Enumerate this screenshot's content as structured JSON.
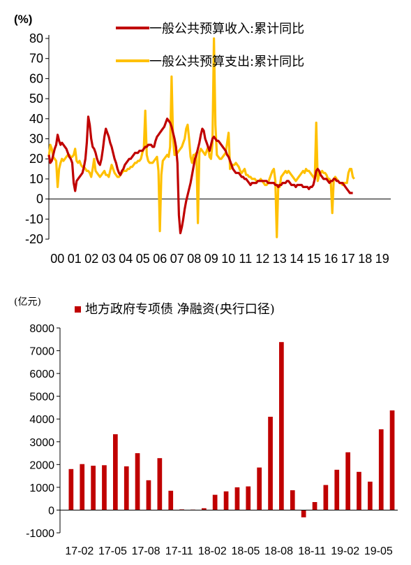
{
  "chart_data": [
    {
      "type": "line",
      "unit_label": "(%)",
      "yticks": [
        "80",
        "70",
        "60",
        "50",
        "40",
        "30",
        "20",
        "10",
        "0",
        "-10",
        "-20"
      ],
      "ylim": [
        -20,
        80
      ],
      "x_labels": [
        "00",
        "01",
        "02",
        "03",
        "04",
        "05",
        "06",
        "07",
        "08",
        "09",
        "10",
        "11",
        "12",
        "13",
        "14",
        "15",
        "16",
        "17",
        "18",
        "19"
      ],
      "legend_position": "top-right",
      "series": [
        {
          "name": "一般公共预算收入:累计同比",
          "color": "#c00000",
          "x_start": 2000.0,
          "x_step": 0.0833333,
          "values": [
            22,
            18,
            19,
            22,
            25,
            27,
            32,
            29,
            27,
            28,
            27,
            26,
            25,
            23,
            21,
            20,
            18,
            8,
            4,
            9,
            10,
            11,
            12,
            13,
            16,
            20,
            28,
            41,
            37,
            30,
            26,
            25,
            23,
            20,
            18,
            17,
            20,
            25,
            31,
            35,
            33,
            31,
            28,
            26,
            23,
            20,
            18,
            15,
            13,
            12,
            14,
            15,
            17,
            18,
            19,
            20,
            20,
            21,
            22,
            23,
            23,
            23,
            24,
            24,
            24,
            25,
            26,
            26,
            27,
            27,
            27,
            26,
            26,
            29,
            31,
            32,
            33,
            34,
            35,
            36,
            38,
            40,
            39,
            38,
            36,
            33,
            30,
            26,
            18,
            -8,
            -17,
            -14,
            -10,
            -5,
            -1,
            2,
            5,
            8,
            12,
            16,
            20,
            22,
            25,
            28,
            32,
            35,
            34,
            30,
            28,
            26,
            24,
            27,
            30,
            31,
            30,
            29,
            29,
            28,
            27,
            26,
            25,
            24,
            22,
            21,
            19,
            17,
            15,
            14,
            13,
            13,
            13,
            12,
            11,
            11,
            10,
            10,
            9,
            8,
            7,
            8,
            8,
            8,
            8,
            9,
            9,
            9,
            9,
            9,
            9,
            9,
            8,
            8,
            8,
            8,
            8,
            7,
            7,
            6,
            7,
            7,
            8,
            8,
            8,
            9,
            9,
            8,
            7,
            7,
            7,
            6,
            7,
            7,
            7,
            7,
            6,
            6,
            6,
            6,
            5,
            6,
            6,
            7,
            10,
            14,
            15,
            14,
            12,
            11,
            10,
            10,
            10,
            9,
            8,
            9,
            9,
            10,
            10,
            9,
            9,
            8,
            8,
            8,
            7,
            6,
            5,
            4,
            3,
            3,
            3
          ]
        },
        {
          "name": "一般公共预算支出:累计同比",
          "color": "#ffc000",
          "x_start": 2000.0,
          "x_step": 0.0833333,
          "values": [
            21,
            27,
            25,
            21,
            20,
            19,
            6,
            15,
            18,
            20,
            19,
            20,
            21,
            22,
            22,
            21,
            21,
            22,
            25,
            19,
            18,
            19,
            17,
            16,
            16,
            15,
            14,
            14,
            13,
            11,
            15,
            20,
            14,
            13,
            12,
            11,
            12,
            13,
            14,
            12,
            12,
            11,
            14,
            17,
            15,
            13,
            12,
            11,
            11,
            12,
            13,
            14,
            14,
            14,
            15,
            15,
            16,
            16,
            17,
            18,
            18,
            19,
            19,
            20,
            23,
            25,
            44,
            22,
            19,
            18,
            18,
            18,
            19,
            20,
            21,
            14,
            -16,
            12,
            19,
            20,
            21,
            22,
            21,
            26,
            61,
            30,
            22,
            22,
            23,
            24,
            25,
            26,
            28,
            30,
            35,
            37,
            30,
            21,
            18,
            22,
            22,
            23,
            -12,
            23,
            25,
            24,
            23,
            22,
            24,
            26,
            21,
            20,
            28,
            80,
            37,
            22,
            21,
            20,
            20,
            21,
            22,
            23,
            28,
            33,
            15,
            16,
            17,
            17,
            18,
            17,
            16,
            14,
            13,
            14,
            15,
            12,
            12,
            11,
            11,
            10,
            10,
            10,
            9,
            9,
            9,
            10,
            9,
            8,
            7,
            7,
            8,
            10,
            12,
            14,
            15,
            9,
            -19,
            7,
            6,
            11,
            12,
            13,
            14,
            13,
            14,
            13,
            12,
            11,
            10,
            9,
            10,
            11,
            12,
            13,
            14,
            13,
            15,
            14,
            14,
            13,
            12,
            11,
            10,
            38,
            9,
            12,
            13,
            14,
            13,
            13,
            12,
            10,
            10,
            8,
            -7,
            10,
            11,
            10,
            9,
            8,
            8,
            7,
            8,
            8,
            8,
            13,
            15,
            15,
            11,
            10
          ]
        }
      ]
    },
    {
      "type": "bar",
      "unit_label": "(亿元)",
      "yticks": [
        "8000",
        "7000",
        "6000",
        "5000",
        "4000",
        "3000",
        "2000",
        "1000",
        "0",
        "-1000"
      ],
      "ylim": [
        -1000,
        8000
      ],
      "x_labels": [
        "17-02",
        "17-05",
        "17-08",
        "17-11",
        "18-02",
        "18-05",
        "18-08",
        "18-11",
        "19-02",
        "19-05"
      ],
      "legend_position": "top",
      "series": [
        {
          "name": "地方政府专项债 净融资(央行口径)",
          "color": "#c00000",
          "values": [
            1800,
            2020,
            1950,
            1970,
            3330,
            1920,
            2500,
            1310,
            2280,
            850,
            30,
            20,
            80,
            670,
            820,
            1000,
            1040,
            1870,
            4100,
            7380,
            870,
            -320,
            350,
            1100,
            1770,
            2540,
            1680,
            1250,
            3550,
            4380
          ]
        }
      ]
    }
  ]
}
